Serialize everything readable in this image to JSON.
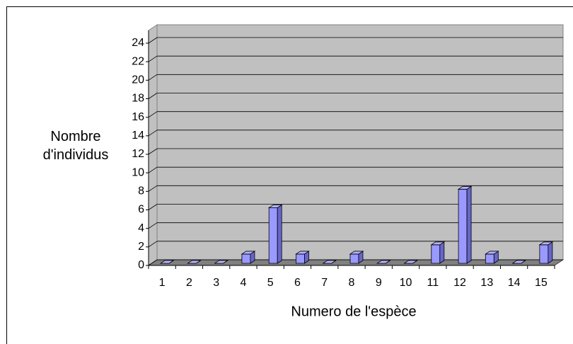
{
  "chart_data": {
    "type": "bar3d",
    "x_label": "Numero de l'espèce",
    "y_label": "Nombre d'individus",
    "categories": [
      "1",
      "2",
      "3",
      "4",
      "5",
      "6",
      "7",
      "8",
      "9",
      "10",
      "11",
      "12",
      "13",
      "14",
      "15"
    ],
    "values": [
      0,
      0,
      0,
      1,
      6,
      1,
      0,
      1,
      0,
      0,
      2,
      8,
      1,
      0,
      2
    ],
    "color": "#9999ff",
    "ylim": [
      0,
      24
    ],
    "yticks": [
      0,
      2,
      4,
      6,
      8,
      10,
      12,
      14,
      16,
      18,
      20,
      22,
      24
    ],
    "grid": true
  }
}
